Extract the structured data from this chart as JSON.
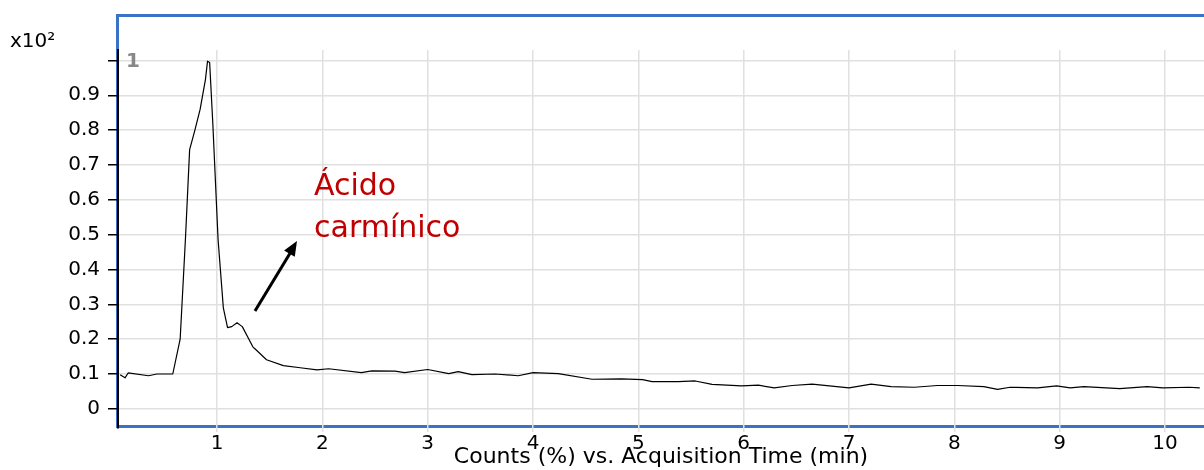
{
  "chart_data": {
    "type": "line",
    "xlabel": "Counts (%) vs. Acquisition Time (min)",
    "ylabel": "x10²",
    "annotations": [
      "1",
      "Ácido carmínico"
    ],
    "xlim": [
      0.06,
      10.37
    ],
    "xticks": [
      1,
      2,
      3,
      4,
      5,
      6,
      7,
      8,
      9,
      10
    ],
    "ylim": [
      -0.055,
      1.03
    ],
    "yticks": [
      0,
      0.1,
      0.2,
      0.3,
      0.4,
      0.5,
      0.6,
      0.7,
      0.8,
      0.9,
      {
        "value": 1,
        "label": null
      }
    ],
    "grid": true,
    "marker": "none",
    "line_style": "solid",
    "series": [
      {
        "color": "#000000",
        "x": [
          0.08,
          0.127,
          0.156,
          0.35,
          0.43,
          0.58,
          0.65,
          0.7,
          0.74,
          0.79,
          0.84,
          0.89,
          0.91,
          0.93,
          0.96,
          1.01,
          1.06,
          1.1,
          1.14,
          1.19,
          1.24,
          1.34,
          1.47,
          1.63,
          1.79,
          1.95,
          2.06,
          2.37,
          2.47,
          2.69,
          2.78,
          3.0,
          3.2,
          3.29,
          3.42,
          3.64,
          3.86,
          4.0,
          4.24,
          4.56,
          4.84,
          5.04,
          5.13,
          5.38,
          5.54,
          5.7,
          5.98,
          6.14,
          6.29,
          6.46,
          6.65,
          7.0,
          7.21,
          7.4,
          7.62,
          7.84,
          8.03,
          8.28,
          8.41,
          8.53,
          8.79,
          8.97,
          9.1,
          9.23,
          9.57,
          9.83,
          9.98,
          10.23,
          10.33
        ],
        "values": [
          0.098,
          0.089,
          0.103,
          0.095,
          0.1,
          0.1,
          0.2,
          0.486,
          0.744,
          0.8,
          0.86,
          0.945,
          0.998,
          0.994,
          0.82,
          0.486,
          0.29,
          0.233,
          0.236,
          0.247,
          0.236,
          0.178,
          0.141,
          0.124,
          0.118,
          0.112,
          0.115,
          0.104,
          0.109,
          0.108,
          0.104,
          0.113,
          0.101,
          0.107,
          0.098,
          0.1,
          0.095,
          0.104,
          0.101,
          0.085,
          0.086,
          0.084,
          0.078,
          0.078,
          0.08,
          0.07,
          0.066,
          0.068,
          0.06,
          0.067,
          0.071,
          0.06,
          0.071,
          0.064,
          0.062,
          0.067,
          0.067,
          0.064,
          0.056,
          0.062,
          0.06,
          0.066,
          0.06,
          0.064,
          0.058,
          0.064,
          0.06,
          0.062,
          0.06
        ]
      }
    ]
  }
}
